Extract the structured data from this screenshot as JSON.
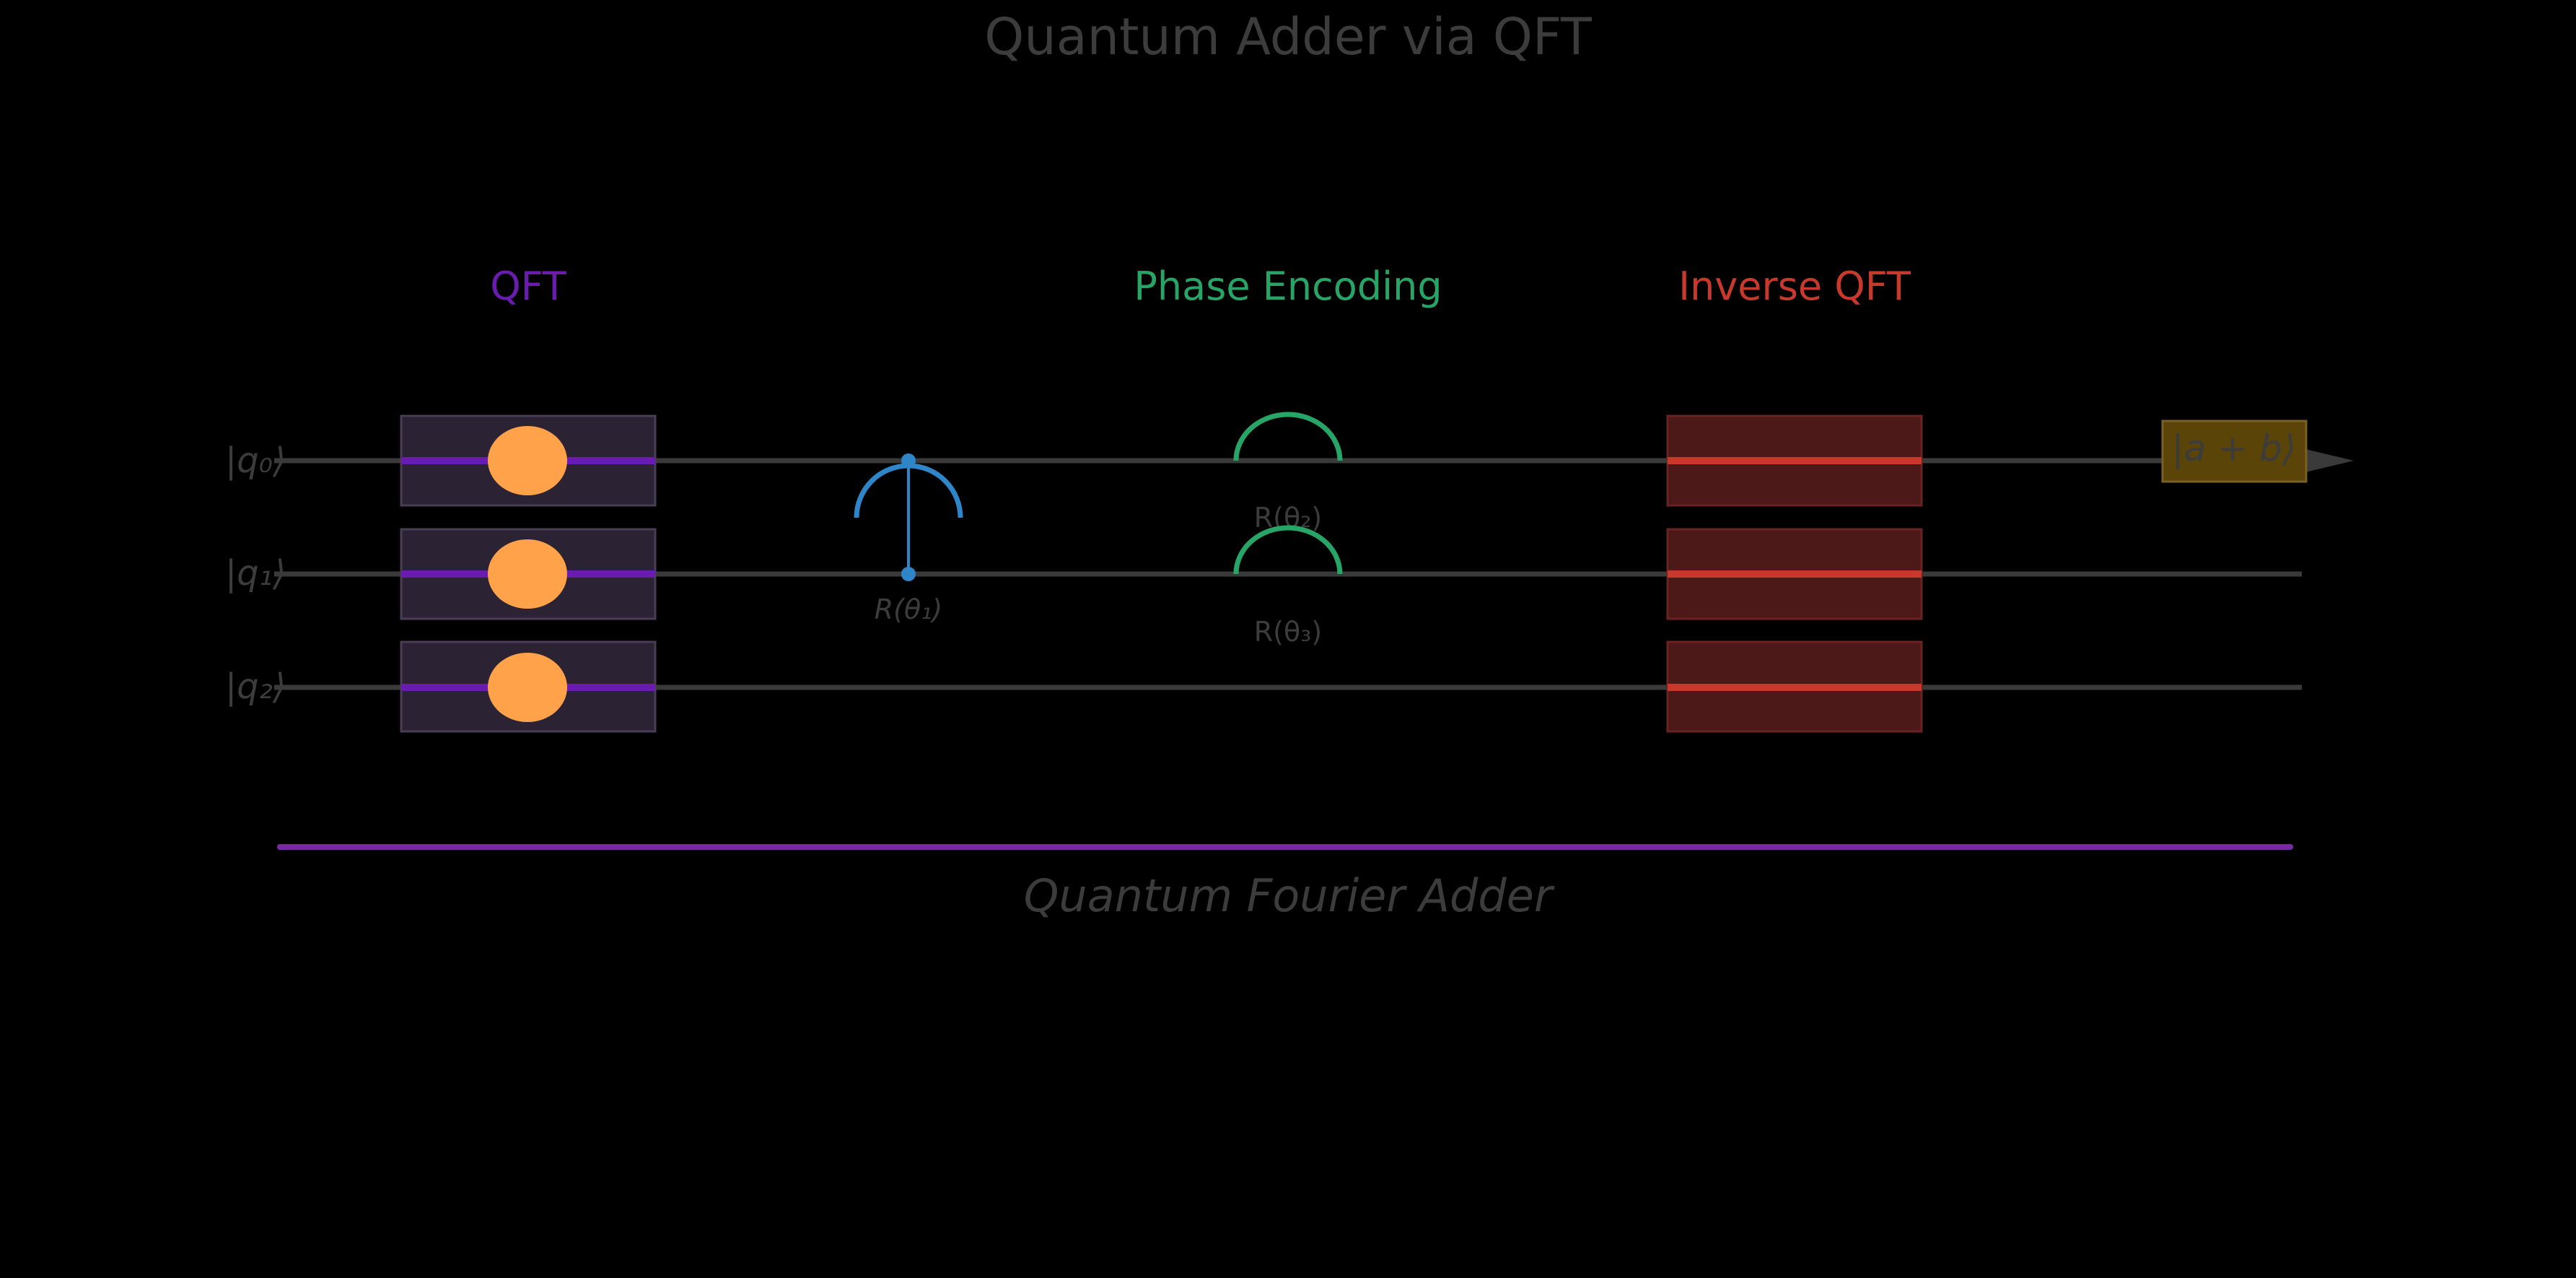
{
  "title": "Quantum Adder via QFT",
  "sections": {
    "qft": "QFT",
    "phase": "Phase Encoding",
    "iqft": "Inverse QFT"
  },
  "qubits": [
    {
      "label": "|q₀⟩"
    },
    {
      "label": "|q₁⟩"
    },
    {
      "label": "|q₂⟩"
    }
  ],
  "gates": {
    "controlled_rotation": {
      "label": "R(θ₁)"
    },
    "phase_rotations": [
      {
        "label": "R(θ₂)"
      },
      {
        "label": "R(θ₃)"
      }
    ]
  },
  "output": {
    "label": "|a + b⟩"
  },
  "footer": "Quantum Fourier Adder",
  "colors": {
    "background": "#000000",
    "wire": "#3a3a3a",
    "text_dim": "#3c3c3c",
    "qft": "#6a1cb0",
    "qft_box": "#2b2333",
    "qft_node": "#ffa24a",
    "phase": "#27a567",
    "control": "#2e86c9",
    "iqft": "#c9392b",
    "iqft_box": "#4d1818",
    "output_box": "#5a4408",
    "footer_line": "#7a2aa0"
  }
}
